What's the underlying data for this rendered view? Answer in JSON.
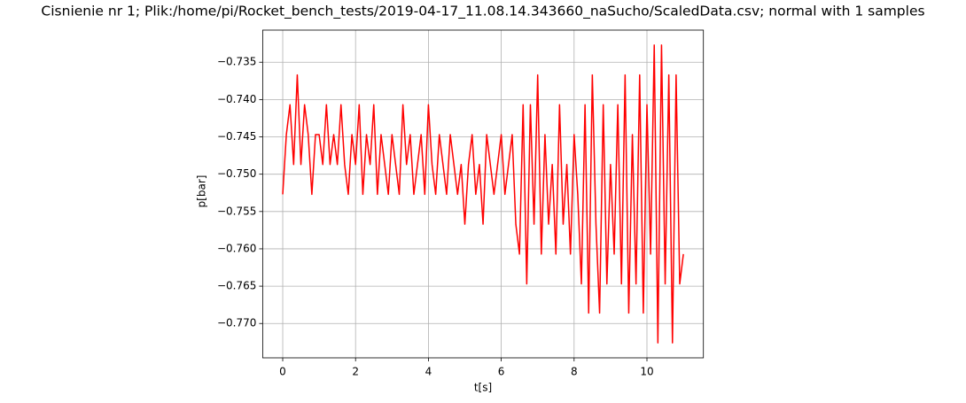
{
  "chart_data": {
    "type": "line",
    "title": "Cisnienie nr 1; Plik:/home/pi/Rocket_bench_tests/2019-04-17_11.08.14.343660_naSucho/ScaledData.csv; normal with 1 samples",
    "xlabel": "t[s]",
    "ylabel": "p[bar]",
    "color": "#ff0000",
    "grid": true,
    "xlim": [
      -0.55,
      11.55
    ],
    "xticks": [
      0,
      2,
      4,
      6,
      8,
      10
    ],
    "ylim": [
      -0.7746,
      -0.7307
    ],
    "yticks": [
      {
        "value": -0.77,
        "label": "−0.770"
      },
      {
        "value": -0.765,
        "label": "−0.765"
      },
      {
        "value": -0.76,
        "label": "−0.760"
      },
      {
        "value": -0.755,
        "label": "−0.755"
      },
      {
        "value": -0.75,
        "label": "−0.750"
      },
      {
        "value": -0.745,
        "label": "−0.745"
      },
      {
        "value": -0.74,
        "label": "−0.740"
      },
      {
        "value": -0.735,
        "label": "−0.735"
      }
    ],
    "x": [
      0.0,
      0.1,
      0.2,
      0.3,
      0.4,
      0.5,
      0.6,
      0.7,
      0.8,
      0.9,
      1.0,
      1.1,
      1.2,
      1.3,
      1.4,
      1.5,
      1.6,
      1.7,
      1.8,
      1.9,
      2.0,
      2.1,
      2.2,
      2.3,
      2.4,
      2.5,
      2.6,
      2.7,
      2.8,
      2.9,
      3.0,
      3.1,
      3.2,
      3.3,
      3.4,
      3.5,
      3.6,
      3.7,
      3.8,
      3.9,
      4.0,
      4.1,
      4.2,
      4.3,
      4.4,
      4.5,
      4.6,
      4.7,
      4.8,
      4.9,
      5.0,
      5.1,
      5.2,
      5.3,
      5.4,
      5.5,
      5.6,
      5.7,
      5.8,
      5.9,
      6.0,
      6.1,
      6.2,
      6.3,
      6.4,
      6.5,
      6.6,
      6.7,
      6.8,
      6.9,
      7.0,
      7.1,
      7.2,
      7.3,
      7.4,
      7.5,
      7.6,
      7.7,
      7.8,
      7.9,
      8.0,
      8.1,
      8.2,
      8.3,
      8.4,
      8.5,
      8.6,
      8.7,
      8.8,
      8.9,
      9.0,
      9.1,
      9.2,
      9.3,
      9.4,
      9.5,
      9.6,
      9.7,
      9.8,
      9.9,
      10.0,
      10.1,
      10.2,
      10.3,
      10.4,
      10.5,
      10.6,
      10.7,
      10.8,
      10.9,
      11.0
    ],
    "values": [
      -0.7527,
      -0.7447,
      -0.7407,
      -0.7487,
      -0.7367,
      -0.7487,
      -0.7407,
      -0.7447,
      -0.7527,
      -0.7447,
      -0.7447,
      -0.7487,
      -0.7407,
      -0.7487,
      -0.7447,
      -0.7487,
      -0.7407,
      -0.7487,
      -0.7527,
      -0.7447,
      -0.7487,
      -0.7407,
      -0.7527,
      -0.7447,
      -0.7487,
      -0.7407,
      -0.7527,
      -0.7447,
      -0.7487,
      -0.7527,
      -0.7447,
      -0.7487,
      -0.7527,
      -0.7407,
      -0.7487,
      -0.7447,
      -0.7527,
      -0.7487,
      -0.7447,
      -0.7527,
      -0.7407,
      -0.7487,
      -0.7527,
      -0.7447,
      -0.7487,
      -0.7527,
      -0.7447,
      -0.7487,
      -0.7527,
      -0.7487,
      -0.7567,
      -0.7487,
      -0.7447,
      -0.7527,
      -0.7487,
      -0.7567,
      -0.7447,
      -0.7487,
      -0.7527,
      -0.7487,
      -0.7447,
      -0.7527,
      -0.7487,
      -0.7447,
      -0.7567,
      -0.7607,
      -0.7407,
      -0.7647,
      -0.7407,
      -0.7567,
      -0.7367,
      -0.7607,
      -0.7447,
      -0.7567,
      -0.7487,
      -0.7607,
      -0.7407,
      -0.7567,
      -0.7487,
      -0.7607,
      -0.7447,
      -0.7527,
      -0.7647,
      -0.7407,
      -0.7686,
      -0.7367,
      -0.7567,
      -0.7686,
      -0.7407,
      -0.7647,
      -0.7487,
      -0.7607,
      -0.7407,
      -0.7647,
      -0.7367,
      -0.7686,
      -0.7447,
      -0.7647,
      -0.7367,
      -0.7686,
      -0.7407,
      -0.7607,
      -0.7327,
      -0.7726,
      -0.7327,
      -0.7647,
      -0.7367,
      -0.7726,
      -0.7367,
      -0.7647,
      -0.7607
    ]
  }
}
